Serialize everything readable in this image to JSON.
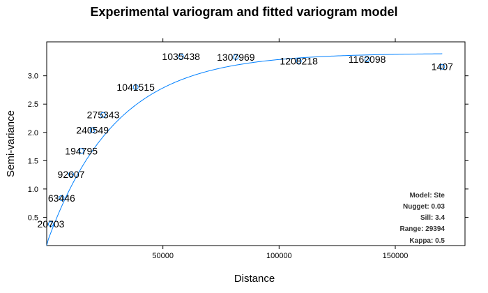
{
  "chart_data": {
    "type": "scatter",
    "title": "Experimental variogram and fitted variogram model",
    "xlabel": "Distance",
    "ylabel": "Semi-variance",
    "xlim": [
      0,
      180000
    ],
    "ylim": [
      0,
      3.6
    ],
    "x_ticks": [
      50000,
      100000,
      150000
    ],
    "x_tick_labels": [
      "50000",
      "100000",
      "150000"
    ],
    "y_ticks": [
      0.5,
      1.0,
      1.5,
      2.0,
      2.5,
      3.0
    ],
    "y_tick_labels": [
      "0.5",
      "1.0",
      "1.5",
      "2.0",
      "2.5",
      "3.0"
    ],
    "points": [
      {
        "x": 1800,
        "y": 0.38,
        "label": "20703"
      },
      {
        "x": 6400,
        "y": 0.84,
        "label": "63446"
      },
      {
        "x": 10500,
        "y": 1.26,
        "label": "92607"
      },
      {
        "x": 14900,
        "y": 1.67,
        "label": "194795"
      },
      {
        "x": 19700,
        "y": 2.04,
        "label": "240549"
      },
      {
        "x": 24300,
        "y": 2.31,
        "label": "275343"
      },
      {
        "x": 38300,
        "y": 2.8,
        "label": "1041515"
      },
      {
        "x": 57800,
        "y": 3.34,
        "label": "1035438"
      },
      {
        "x": 81400,
        "y": 3.33,
        "label": "1307969"
      },
      {
        "x": 108500,
        "y": 3.26,
        "label": "1208218"
      },
      {
        "x": 137900,
        "y": 3.29,
        "label": "1162098"
      },
      {
        "x": 170200,
        "y": 3.16,
        "label": "1407"
      }
    ],
    "model": {
      "type": "Ste",
      "nugget": 0.03,
      "sill": 3.4,
      "range": 29394,
      "kappa": 0.5
    },
    "grid": false,
    "colors": {
      "points": "#0080ff",
      "line": "#0080ff",
      "axis": "#000000"
    }
  },
  "info": {
    "model": "Model: Ste",
    "nugget": "Nugget: 0.03",
    "sill": "Sill: 3.4",
    "range": "Range: 29394",
    "kappa": "Kappa: 0.5"
  }
}
